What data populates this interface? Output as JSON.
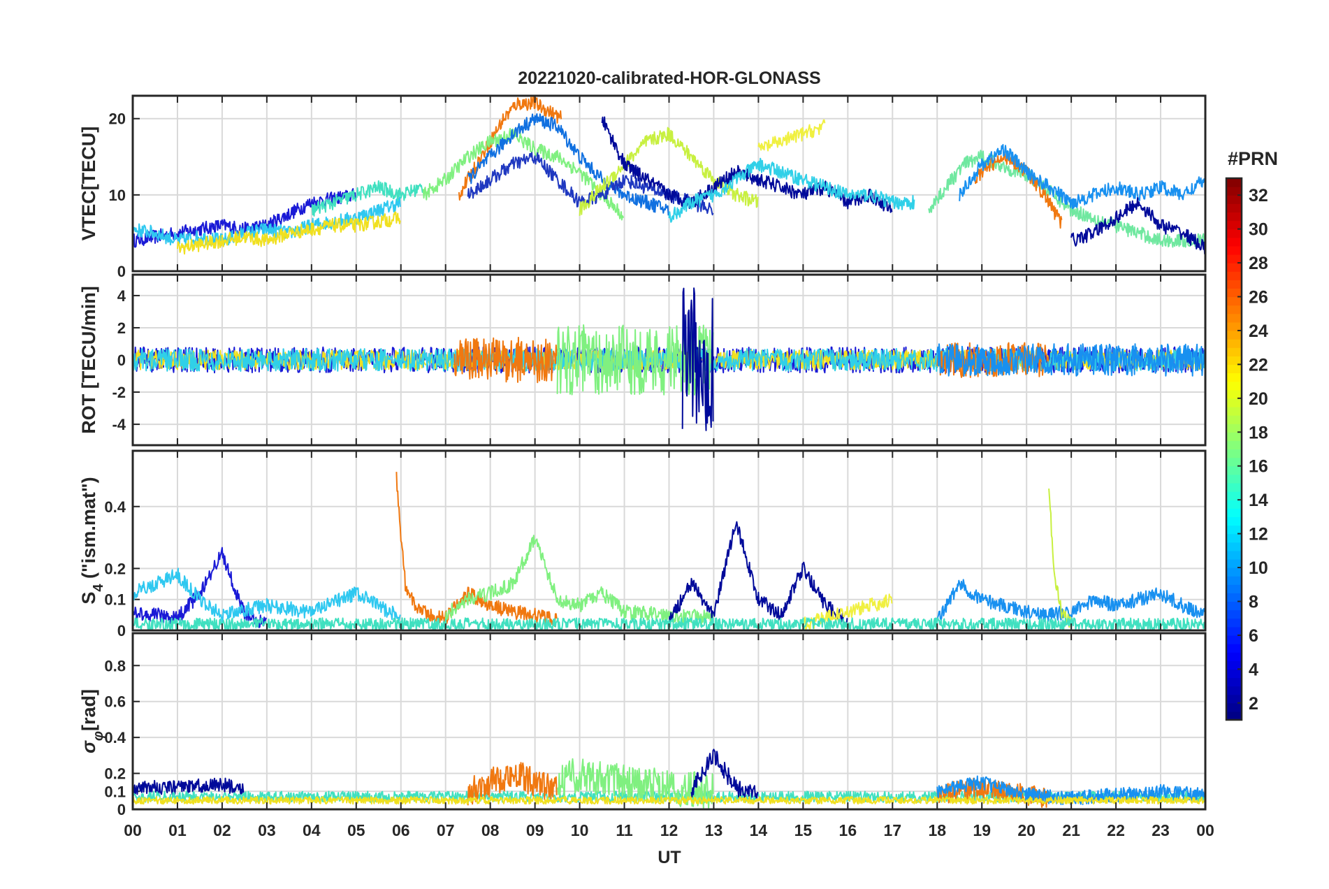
{
  "chart_data": {
    "type": "line",
    "title": "20221020-calibrated-HOR-GLONASS",
    "xlabel": "UT",
    "x_tick_labels": [
      "00",
      "01",
      "02",
      "03",
      "04",
      "05",
      "06",
      "07",
      "08",
      "09",
      "10",
      "11",
      "12",
      "13",
      "14",
      "15",
      "16",
      "17",
      "18",
      "19",
      "20",
      "21",
      "22",
      "23",
      "00"
    ],
    "x_range_hours": [
      0,
      24
    ],
    "grid": true,
    "colorbar": {
      "title": "#PRN",
      "range": [
        1,
        33
      ],
      "colormap": "jet",
      "tick_labels": [
        "2",
        "4",
        "6",
        "8",
        "10",
        "12",
        "14",
        "16",
        "18",
        "20",
        "22",
        "24",
        "26",
        "28",
        "30",
        "32"
      ]
    },
    "panels": [
      {
        "ylabel": "VTEC[TECU]",
        "ylim": [
          0,
          23
        ],
        "yticks": [
          0,
          10,
          20
        ],
        "series": [
          {
            "color": "#1a1ad6",
            "x": [
              0,
              0.5,
              1,
              1.5,
              2,
              2.5,
              3,
              3.5,
              4,
              4.5,
              5
            ],
            "y": [
              4,
              4.5,
              5,
              5.5,
              6,
              5.5,
              6,
              7.5,
              9,
              9.5,
              10
            ]
          },
          {
            "color": "#2fc8f0",
            "x": [
              0,
              0.5,
              1,
              1.5,
              2,
              2.5,
              3,
              3.5,
              4,
              4.5,
              5,
              5.5,
              6
            ],
            "y": [
              5.5,
              5,
              4,
              4.5,
              4,
              5,
              5.5,
              5,
              6,
              6.5,
              7,
              8,
              9
            ]
          },
          {
            "color": "#f0e020",
            "x": [
              1,
              1.5,
              2,
              2.5,
              3,
              3.5,
              4,
              4.5,
              5,
              5.5,
              6
            ],
            "y": [
              3,
              3.5,
              4,
              4.5,
              4,
              5,
              5.5,
              6,
              6,
              6.5,
              7
            ]
          },
          {
            "color": "#40e0c0",
            "x": [
              4,
              4.5,
              5,
              5.5,
              6,
              6.5
            ],
            "y": [
              8,
              9,
              10,
              11,
              10,
              11
            ]
          },
          {
            "color": "#f07810",
            "x": [
              7.3,
              7.6,
              8,
              8.3,
              8.6,
              9,
              9.3,
              9.6
            ],
            "y": [
              10,
              13,
              17,
              20,
              22,
              22,
              21,
              20
            ]
          },
          {
            "color": "#80f080",
            "x": [
              6.5,
              7,
              7.5,
              8,
              8.5,
              9,
              9.5,
              10,
              10.5,
              11
            ],
            "y": [
              10,
              12,
              15,
              17,
              18,
              16,
              15,
              13,
              10,
              7
            ]
          },
          {
            "color": "#1070e0",
            "x": [
              7.5,
              8,
              8.5,
              9,
              9.5,
              10,
              10.5,
              11,
              11.5,
              12
            ],
            "y": [
              12,
              15,
              18,
              20,
              19,
              15,
              12,
              10,
              9,
              8
            ]
          },
          {
            "color": "#1f38c0",
            "x": [
              7.5,
              8,
              8.5,
              9,
              9.5,
              10,
              10.5,
              11,
              11.5,
              12,
              12.5,
              13
            ],
            "y": [
              10,
              12,
              14,
              15,
              12,
              9,
              10,
              12,
              11,
              10,
              9,
              8
            ]
          },
          {
            "color": "#c8f040",
            "x": [
              10,
              10.5,
              11,
              11.5,
              12,
              12.5,
              13,
              13.5,
              14
            ],
            "y": [
              8,
              11,
              14,
              17,
              18,
              15,
              12,
              10,
              9
            ]
          },
          {
            "color": "#000a9a",
            "x": [
              10.5,
              11,
              11.5,
              12,
              12.5,
              13,
              13.5,
              14,
              14.5,
              15,
              15.5,
              16,
              16.5,
              17
            ],
            "y": [
              20,
              14,
              12,
              10,
              9,
              11,
              13,
              12,
              11,
              10,
              11,
              9,
              10,
              8
            ]
          },
          {
            "color": "#30d0e8",
            "x": [
              12,
              12.5,
              13,
              13.5,
              14,
              14.5,
              15,
              15.5,
              16,
              16.5,
              17,
              17.5
            ],
            "y": [
              7,
              9,
              10,
              12,
              14,
              13,
              12,
              11,
              10,
              10,
              9,
              9
            ]
          },
          {
            "color": "#f0f040",
            "x": [
              14,
              14.5,
              15,
              15.5
            ],
            "y": [
              16,
              17,
              18,
              19
            ]
          },
          {
            "color": "#70e8a0",
            "x": [
              17.8,
              18.2,
              18.6,
              19,
              19.4,
              19.8,
              20.2,
              20.6,
              21,
              21.5,
              22,
              22.5,
              23,
              23.5,
              24
            ],
            "y": [
              8,
              11,
              14,
              15,
              14,
              13,
              12,
              10,
              8,
              7,
              6,
              5,
              4,
              4,
              4
            ]
          },
          {
            "color": "#f07810",
            "x": [
              18.8,
              19.2,
              19.6,
              20,
              20.4,
              20.8
            ],
            "y": [
              12,
              14,
              15,
              13,
              10,
              6
            ]
          },
          {
            "color": "#1890f0",
            "x": [
              18.5,
              19,
              19.5,
              20,
              20.5,
              21,
              21.5,
              22,
              22.5,
              23,
              23.5,
              24
            ],
            "y": [
              10,
              14,
              16,
              13,
              11,
              9,
              10,
              11,
              10,
              11,
              10,
              12
            ]
          },
          {
            "color": "#000a9a",
            "x": [
              21,
              21.5,
              22,
              22.5,
              23,
              23.5,
              24
            ],
            "y": [
              4,
              5,
              7,
              9,
              6,
              5,
              3
            ]
          }
        ]
      },
      {
        "ylabel": "ROT [TECU/min]",
        "ylim": [
          -5.3,
          5.3
        ],
        "yticks": [
          -4,
          -2,
          0,
          2,
          4
        ],
        "series": [
          {
            "color": "#1a1ad6",
            "x": [
              0,
              24
            ],
            "y": [
              0,
              0
            ],
            "noise_amplitude": 0.8
          },
          {
            "color": "#f0e020",
            "x": [
              0,
              24
            ],
            "y": [
              0,
              0
            ],
            "noise_amplitude": 0.6
          },
          {
            "color": "#30d0e8",
            "x": [
              0,
              24
            ],
            "y": [
              0,
              0
            ],
            "noise_amplitude": 0.7
          },
          {
            "color": "#f07810",
            "x": [
              7.2,
              9.5
            ],
            "y": [
              0,
              0
            ],
            "noise_amplitude": 1.4
          },
          {
            "color": "#80f080",
            "x": [
              9.5,
              13
            ],
            "y": [
              0,
              0
            ],
            "noise_amplitude": 2.2
          },
          {
            "color": "#000a9a",
            "x": [
              12.3,
              13
            ],
            "y": [
              0,
              0
            ],
            "noise_amplitude": 4.5
          },
          {
            "color": "#f07810",
            "x": [
              18,
              20.5
            ],
            "y": [
              0,
              0
            ],
            "noise_amplitude": 1.1
          },
          {
            "color": "#1890f0",
            "x": [
              18,
              24
            ],
            "y": [
              0,
              0
            ],
            "noise_amplitude": 1.0
          }
        ]
      },
      {
        "ylabel": "S4 (\"ism.mat\")",
        "ylabel_main": "S",
        "ylabel_sub": "4",
        "ylabel_rest": " (\"ism.mat\")",
        "ylim": [
          0,
          0.58
        ],
        "yticks": [
          0,
          0.1,
          0.2,
          0.4
        ],
        "ytick_labels": [
          "0",
          "0.1",
          "0.2",
          "0.4"
        ],
        "series": [
          {
            "color": "#1a1ad6",
            "x": [
              0,
              0.5,
              1,
              1.5,
              2,
              2.5,
              3
            ],
            "y": [
              0.06,
              0.05,
              0.04,
              0.12,
              0.25,
              0.05,
              0.02
            ]
          },
          {
            "color": "#2fc8f0",
            "x": [
              0,
              0.5,
              1,
              1.5,
              2,
              3,
              4,
              5,
              6
            ],
            "y": [
              0.12,
              0.15,
              0.18,
              0.1,
              0.05,
              0.08,
              0.06,
              0.12,
              0.04
            ]
          },
          {
            "color": "#f07810",
            "x": [
              5.9,
              6,
              6.1,
              6.3,
              6.6,
              7,
              7.5,
              8,
              8.5,
              9,
              9.5
            ],
            "y": [
              0.5,
              0.3,
              0.15,
              0.08,
              0.05,
              0.04,
              0.12,
              0.08,
              0.06,
              0.05,
              0.03
            ]
          },
          {
            "color": "#80f080",
            "x": [
              7,
              7.5,
              8,
              8.5,
              9,
              9.5,
              10,
              10.5,
              11,
              12,
              13
            ],
            "y": [
              0.05,
              0.1,
              0.12,
              0.15,
              0.3,
              0.1,
              0.08,
              0.12,
              0.06,
              0.05,
              0.04
            ]
          },
          {
            "color": "#000a9a",
            "x": [
              12,
              12.5,
              13,
              13.5,
              14,
              14.5,
              15,
              15.5,
              16
            ],
            "y": [
              0.03,
              0.15,
              0.05,
              0.35,
              0.1,
              0.05,
              0.2,
              0.08,
              0.03
            ]
          },
          {
            "color": "#f0f040",
            "x": [
              15,
              15.5,
              16,
              16.5,
              17
            ],
            "y": [
              0.02,
              0.04,
              0.06,
              0.08,
              0.1
            ]
          },
          {
            "color": "#1890f0",
            "x": [
              18,
              18.5,
              19,
              19.5,
              20,
              20.5,
              21,
              21.5,
              22,
              22.5,
              23,
              23.5,
              24
            ],
            "y": [
              0.03,
              0.15,
              0.1,
              0.08,
              0.06,
              0.05,
              0.06,
              0.1,
              0.08,
              0.1,
              0.12,
              0.08,
              0.05
            ]
          },
          {
            "color": "#c8f040",
            "x": [
              20.5,
              20.6,
              20.8,
              21
            ],
            "y": [
              0.48,
              0.2,
              0.05,
              0.02
            ]
          },
          {
            "color": "#40e0c0",
            "x": [
              0,
              24
            ],
            "y": [
              0.02,
              0.02
            ],
            "noise_amplitude": 0.02
          }
        ]
      },
      {
        "ylabel": "σφ[rad]",
        "ylabel_main": "σ",
        "ylabel_sub": "φ",
        "ylabel_rest": "[rad]",
        "ylim": [
          0,
          0.98
        ],
        "yticks": [
          0,
          0.1,
          0.2,
          0.4,
          0.6,
          0.8
        ],
        "ytick_labels": [
          "0",
          "0.1",
          "0.2",
          "0.4",
          "0.6",
          "0.8"
        ],
        "series": [
          {
            "color": "#000a9a",
            "x": [
              0,
              1,
              2,
              2.5
            ],
            "y": [
              0.12,
              0.12,
              0.14,
              0.1
            ],
            "noise_amplitude": 0.04
          },
          {
            "color": "#40e0c0",
            "x": [
              0,
              24
            ],
            "y": [
              0.07,
              0.07
            ],
            "noise_amplitude": 0.03
          },
          {
            "color": "#f07810",
            "x": [
              7.5,
              8,
              8.5,
              9,
              9.5
            ],
            "y": [
              0.1,
              0.15,
              0.2,
              0.15,
              0.1
            ],
            "noise_amplitude": 0.08
          },
          {
            "color": "#80f080",
            "x": [
              9.5,
              10,
              11,
              12,
              13
            ],
            "y": [
              0.15,
              0.2,
              0.15,
              0.12,
              0.1
            ],
            "noise_amplitude": 0.1
          },
          {
            "color": "#000a9a",
            "x": [
              12.5,
              13,
              13.5,
              14
            ],
            "y": [
              0.1,
              0.3,
              0.12,
              0.08
            ],
            "noise_amplitude": 0.05
          },
          {
            "color": "#f07810",
            "x": [
              18,
              18.5,
              19,
              19.5,
              20,
              20.5
            ],
            "y": [
              0.08,
              0.1,
              0.12,
              0.1,
              0.08,
              0.06
            ],
            "noise_amplitude": 0.06
          },
          {
            "color": "#1890f0",
            "x": [
              18,
              19,
              20,
              21,
              22,
              23,
              24
            ],
            "y": [
              0.1,
              0.15,
              0.08,
              0.06,
              0.08,
              0.1,
              0.08
            ],
            "noise_amplitude": 0.04
          },
          {
            "color": "#f0e020",
            "x": [
              0,
              24
            ],
            "y": [
              0.05,
              0.05
            ],
            "noise_amplitude": 0.02
          }
        ]
      }
    ]
  }
}
